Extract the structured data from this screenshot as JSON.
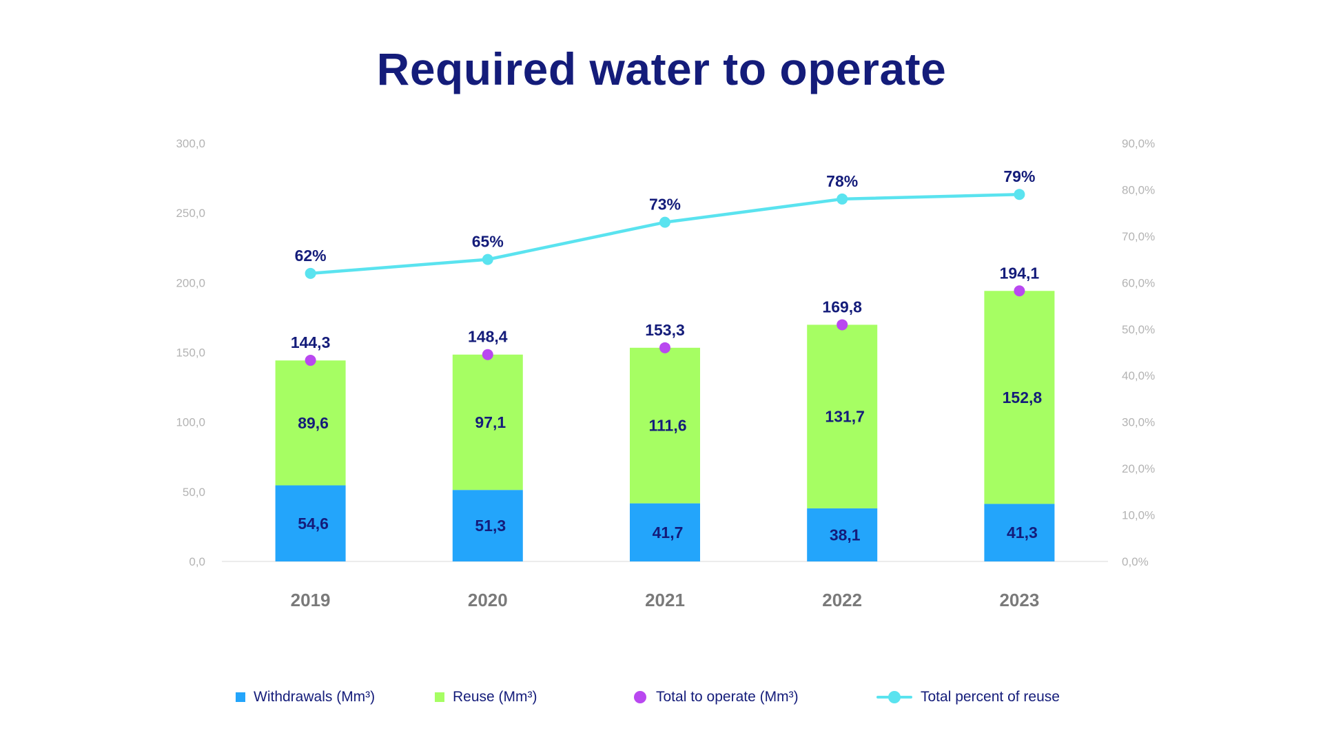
{
  "chart_data": {
    "type": "bar",
    "title": "Required water to operate",
    "categories": [
      "2019",
      "2020",
      "2021",
      "2022",
      "2023"
    ],
    "stacked": true,
    "series": [
      {
        "name": "Withdrawals (Mm³)",
        "kind": "bar",
        "axis": "left",
        "color": "#23a5fb",
        "values": [
          54.6,
          51.3,
          41.7,
          38.1,
          41.3
        ],
        "labels": [
          "54,6",
          "51,3",
          "41,7",
          "38,1",
          "41,3"
        ]
      },
      {
        "name": "Reuse (Mm³)",
        "kind": "bar",
        "axis": "left",
        "color": "#a6fe63",
        "values": [
          89.6,
          97.1,
          111.6,
          131.7,
          152.8
        ],
        "labels": [
          "89,6",
          "97,1",
          "111,6",
          "131,7",
          "152,8"
        ]
      },
      {
        "name": "Total to operate (Mm³)",
        "kind": "point",
        "axis": "left",
        "color": "#b948f0",
        "values": [
          144.3,
          148.4,
          153.3,
          169.8,
          194.1
        ],
        "labels": [
          "144,3",
          "148,4",
          "153,3",
          "169,8",
          "194,1"
        ]
      },
      {
        "name": "Total percent of reuse",
        "kind": "line",
        "axis": "right",
        "color": "#5ae3ef",
        "values": [
          62,
          65,
          73,
          78,
          79
        ],
        "labels": [
          "62%",
          "65%",
          "73%",
          "78%",
          "79%"
        ]
      }
    ],
    "y_left": {
      "ylim": [
        0,
        300
      ],
      "ticks": [
        0,
        50,
        100,
        150,
        200,
        250,
        300
      ],
      "tick_labels": [
        "0,0",
        "50,0",
        "100,0",
        "150,0",
        "200,0",
        "250,0",
        "300,0"
      ]
    },
    "y_right": {
      "ylim": [
        0,
        90
      ],
      "ticks": [
        0,
        10,
        20,
        30,
        40,
        50,
        60,
        70,
        80,
        90
      ],
      "tick_labels": [
        "0,0%",
        "10,0%",
        "20,0%",
        "30,0%",
        "40,0%",
        "50,0%",
        "60,0%",
        "70,0%",
        "80,0%",
        "90,0%"
      ]
    },
    "grid": false,
    "legend_position": "bottom"
  },
  "colors": {
    "title": "#141c7a",
    "data_label": "#141c7a",
    "category_label": "#7a7a7a",
    "tick_label": "#b3b3b3",
    "baseline": "#e6e6e6"
  }
}
